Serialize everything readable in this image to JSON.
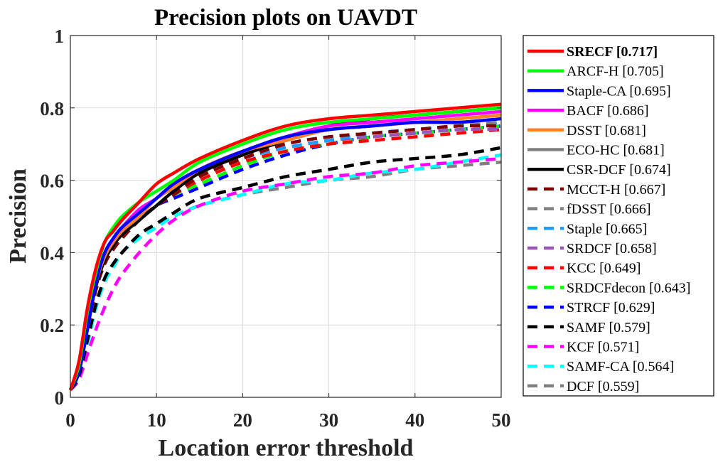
{
  "chart_data": {
    "type": "line",
    "title": "Precision plots on UAVDT",
    "xlabel": "Location error threshold",
    "ylabel": "Precision",
    "xlim": [
      0,
      50
    ],
    "ylim": [
      0,
      1
    ],
    "x_ticks": [
      "0",
      "10",
      "20",
      "30",
      "40",
      "50"
    ],
    "y_ticks": [
      "0",
      "0.2",
      "0.4",
      "0.6",
      "0.8",
      "1"
    ],
    "grid": true,
    "legend_position": "outside-right",
    "x": [
      0,
      1,
      2,
      3,
      4,
      5,
      6,
      8,
      10,
      12,
      15,
      20,
      25,
      30,
      35,
      40,
      45,
      50
    ],
    "series": [
      {
        "name": "SRECF [0.717]",
        "color": "#ff0000",
        "dash": "solid",
        "bold": true,
        "values": [
          0.02,
          0.1,
          0.25,
          0.36,
          0.43,
          0.46,
          0.49,
          0.54,
          0.59,
          0.62,
          0.66,
          0.71,
          0.75,
          0.77,
          0.78,
          0.79,
          0.8,
          0.81
        ]
      },
      {
        "name": "ARCF-H [0.705]",
        "color": "#00ff00",
        "dash": "solid",
        "values": [
          0.02,
          0.09,
          0.24,
          0.35,
          0.43,
          0.47,
          0.5,
          0.54,
          0.57,
          0.6,
          0.65,
          0.7,
          0.74,
          0.76,
          0.77,
          0.78,
          0.79,
          0.8
        ]
      },
      {
        "name": "Staple-CA [0.695]",
        "color": "#0000ff",
        "dash": "solid",
        "values": [
          0.02,
          0.07,
          0.19,
          0.32,
          0.4,
          0.44,
          0.47,
          0.51,
          0.55,
          0.59,
          0.63,
          0.68,
          0.72,
          0.74,
          0.75,
          0.76,
          0.76,
          0.77
        ]
      },
      {
        "name": "BACF [0.686]",
        "color": "#ff00ff",
        "dash": "solid",
        "values": [
          0.02,
          0.08,
          0.22,
          0.33,
          0.4,
          0.44,
          0.47,
          0.52,
          0.55,
          0.59,
          0.63,
          0.68,
          0.72,
          0.75,
          0.76,
          0.77,
          0.78,
          0.79
        ]
      },
      {
        "name": "DSST [0.681]",
        "color": "#ff7f2a",
        "dash": "solid",
        "values": [
          0.02,
          0.08,
          0.22,
          0.32,
          0.39,
          0.43,
          0.46,
          0.5,
          0.55,
          0.58,
          0.63,
          0.68,
          0.71,
          0.74,
          0.75,
          0.76,
          0.77,
          0.78
        ]
      },
      {
        "name": "ECO-HC [0.681]",
        "color": "#808080",
        "dash": "solid",
        "values": [
          0.02,
          0.08,
          0.21,
          0.32,
          0.39,
          0.43,
          0.46,
          0.5,
          0.55,
          0.58,
          0.63,
          0.68,
          0.71,
          0.74,
          0.75,
          0.76,
          0.77,
          0.78
        ]
      },
      {
        "name": "CSR-DCF [0.674]",
        "color": "#000000",
        "dash": "solid",
        "values": [
          0.02,
          0.07,
          0.2,
          0.31,
          0.38,
          0.42,
          0.45,
          0.49,
          0.53,
          0.57,
          0.62,
          0.67,
          0.71,
          0.75,
          0.77,
          0.78,
          0.79,
          0.8
        ]
      },
      {
        "name": "MCCT-H [0.667]",
        "color": "#800000",
        "dash": "dashed",
        "values": [
          0.02,
          0.07,
          0.19,
          0.3,
          0.37,
          0.41,
          0.44,
          0.49,
          0.53,
          0.56,
          0.61,
          0.66,
          0.7,
          0.72,
          0.73,
          0.74,
          0.75,
          0.75
        ]
      },
      {
        "name": "fDSST [0.666]",
        "color": "#808080",
        "dash": "dashed",
        "values": [
          0.02,
          0.07,
          0.19,
          0.3,
          0.37,
          0.41,
          0.44,
          0.49,
          0.53,
          0.56,
          0.61,
          0.66,
          0.7,
          0.72,
          0.73,
          0.74,
          0.75,
          0.76
        ]
      },
      {
        "name": "Staple [0.665]",
        "color": "#1a9fff",
        "dash": "dashed",
        "values": [
          0.02,
          0.07,
          0.19,
          0.3,
          0.37,
          0.41,
          0.44,
          0.49,
          0.53,
          0.56,
          0.61,
          0.66,
          0.69,
          0.71,
          0.73,
          0.74,
          0.75,
          0.76
        ]
      },
      {
        "name": "SRDCF [0.658]",
        "color": "#9955bb",
        "dash": "dashed",
        "values": [
          0.02,
          0.07,
          0.19,
          0.3,
          0.37,
          0.41,
          0.44,
          0.49,
          0.53,
          0.56,
          0.61,
          0.66,
          0.69,
          0.71,
          0.72,
          0.73,
          0.74,
          0.74
        ]
      },
      {
        "name": "KCC [0.649]",
        "color": "#ff0000",
        "dash": "dashed",
        "values": [
          0.02,
          0.07,
          0.19,
          0.3,
          0.37,
          0.41,
          0.44,
          0.49,
          0.53,
          0.56,
          0.6,
          0.65,
          0.68,
          0.7,
          0.71,
          0.72,
          0.73,
          0.74
        ]
      },
      {
        "name": "SRDCFdecon [0.643]",
        "color": "#00ff00",
        "dash": "dashed",
        "values": [
          0.02,
          0.07,
          0.19,
          0.3,
          0.37,
          0.41,
          0.44,
          0.49,
          0.53,
          0.56,
          0.59,
          0.64,
          0.68,
          0.7,
          0.72,
          0.73,
          0.74,
          0.75
        ]
      },
      {
        "name": "STRCF [0.629]",
        "color": "#0000ff",
        "dash": "dashed",
        "values": [
          0.02,
          0.07,
          0.19,
          0.3,
          0.37,
          0.41,
          0.44,
          0.49,
          0.53,
          0.55,
          0.58,
          0.63,
          0.67,
          0.7,
          0.72,
          0.73,
          0.74,
          0.75
        ]
      },
      {
        "name": "SAMF [0.579]",
        "color": "#000000",
        "dash": "dashed",
        "values": [
          0.02,
          0.06,
          0.16,
          0.26,
          0.33,
          0.37,
          0.4,
          0.45,
          0.48,
          0.51,
          0.55,
          0.58,
          0.61,
          0.63,
          0.65,
          0.66,
          0.67,
          0.69
        ]
      },
      {
        "name": "KCF [0.571]",
        "color": "#ff00ff",
        "dash": "dashed",
        "values": [
          0.02,
          0.05,
          0.12,
          0.19,
          0.25,
          0.3,
          0.34,
          0.4,
          0.45,
          0.49,
          0.53,
          0.57,
          0.59,
          0.61,
          0.62,
          0.64,
          0.65,
          0.66
        ]
      },
      {
        "name": "SAMF-CA [0.564]",
        "color": "#00ffff",
        "dash": "dashed",
        "values": [
          0.02,
          0.06,
          0.15,
          0.25,
          0.32,
          0.36,
          0.4,
          0.44,
          0.47,
          0.5,
          0.53,
          0.56,
          0.59,
          0.6,
          0.62,
          0.63,
          0.65,
          0.67
        ]
      },
      {
        "name": "DCF [0.559]",
        "color": "#808080",
        "dash": "dashed",
        "values": [
          0.02,
          0.06,
          0.15,
          0.25,
          0.32,
          0.36,
          0.4,
          0.44,
          0.47,
          0.5,
          0.53,
          0.56,
          0.58,
          0.6,
          0.61,
          0.63,
          0.64,
          0.65
        ]
      }
    ]
  }
}
